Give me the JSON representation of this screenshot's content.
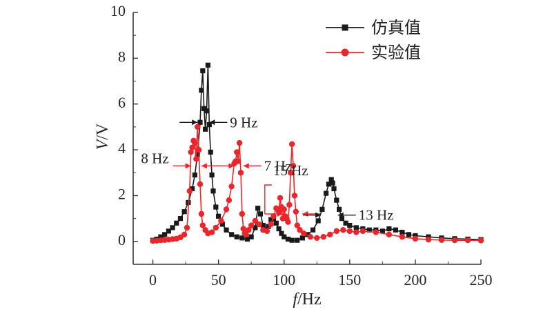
{
  "chart_data": {
    "type": "line",
    "xlabel": "f/Hz",
    "ylabel": "V/V",
    "xlim": [
      -15,
      250
    ],
    "ylim": [
      -1,
      10
    ],
    "xticks": [
      0,
      50,
      100,
      150,
      200,
      250
    ],
    "yticks": [
      0,
      2,
      4,
      6,
      8,
      10
    ],
    "grid": false,
    "legend_position": "top-right",
    "series": [
      {
        "name": "仿真值",
        "color": "#1a1a1a",
        "marker": "square",
        "x": [
          0,
          3,
          6,
          9,
          12,
          15,
          18,
          21,
          24,
          27,
          30,
          32,
          34,
          36,
          37,
          38,
          39,
          40,
          41,
          42,
          43,
          44,
          45,
          46,
          48,
          50,
          53,
          56,
          60,
          64,
          68,
          72,
          75,
          78,
          80,
          82,
          84,
          86,
          88,
          90,
          92,
          94,
          96,
          98,
          100,
          103,
          106,
          110,
          114,
          118,
          122,
          126,
          129,
          132,
          134,
          136,
          137,
          138,
          140,
          142,
          144,
          147,
          150,
          155,
          160,
          165,
          170,
          175,
          180,
          185,
          190,
          195,
          200,
          210,
          220,
          230,
          240,
          250
        ],
        "y": [
          0.05,
          0.1,
          0.2,
          0.3,
          0.45,
          0.6,
          0.8,
          1.0,
          1.3,
          1.7,
          2.3,
          2.9,
          3.8,
          5.2,
          6.6,
          7.45,
          5.8,
          4.9,
          5.7,
          7.7,
          5.1,
          3.9,
          2.9,
          2.2,
          1.5,
          1.1,
          0.75,
          0.5,
          0.3,
          0.2,
          0.15,
          0.1,
          0.2,
          0.6,
          1.45,
          1.2,
          0.7,
          0.5,
          0.65,
          0.95,
          1.0,
          0.8,
          0.55,
          0.35,
          0.2,
          0.1,
          0.05,
          0.05,
          0.15,
          0.3,
          0.5,
          0.9,
          1.4,
          2.1,
          2.5,
          2.7,
          2.55,
          2.3,
          1.8,
          1.4,
          1.0,
          0.8,
          0.7,
          0.6,
          0.55,
          0.5,
          0.5,
          0.45,
          0.55,
          0.5,
          0.4,
          0.3,
          0.25,
          0.2,
          0.15,
          0.12,
          0.1,
          0.08
        ]
      },
      {
        "name": "实验值",
        "color": "#e8262b",
        "marker": "circle",
        "x": [
          0,
          3,
          6,
          9,
          12,
          15,
          18,
          21,
          24,
          26,
          28,
          29,
          30,
          31,
          32,
          33,
          34,
          35,
          36,
          37,
          38,
          40,
          42,
          45,
          48,
          52,
          56,
          58,
          60,
          62,
          63,
          64,
          65,
          66,
          67,
          68,
          69,
          70,
          71,
          73,
          75,
          78,
          81,
          84,
          87,
          90,
          92,
          94,
          96,
          97,
          98,
          99,
          100,
          101,
          102,
          103,
          104,
          105,
          106,
          107,
          108,
          109,
          110,
          112,
          115,
          120,
          125,
          130,
          135,
          140,
          145,
          150,
          155,
          160,
          170,
          180,
          190,
          200,
          210,
          220,
          230,
          240,
          250
        ],
        "y": [
          0.02,
          0.03,
          0.05,
          0.06,
          0.08,
          0.1,
          0.12,
          0.18,
          0.3,
          0.6,
          2.2,
          3.9,
          4.1,
          4.4,
          4.3,
          3.6,
          5.0,
          4.0,
          2.5,
          1.2,
          0.7,
          0.5,
          0.35,
          0.4,
          0.6,
          0.9,
          1.4,
          1.8,
          2.4,
          3.4,
          3.5,
          3.9,
          3.5,
          4.3,
          3.0,
          1.2,
          0.55,
          0.35,
          0.3,
          0.5,
          0.7,
          0.9,
          0.75,
          0.5,
          0.45,
          0.75,
          1.1,
          1.45,
          1.3,
          1.9,
          1.5,
          1.0,
          1.4,
          1.1,
          1.0,
          0.85,
          1.6,
          3.0,
          4.25,
          3.3,
          2.0,
          1.3,
          0.7,
          0.5,
          0.35,
          0.2,
          0.15,
          0.2,
          0.3,
          0.45,
          0.5,
          0.45,
          0.4,
          0.45,
          0.4,
          0.3,
          0.2,
          0.12,
          0.08,
          0.06,
          0.05,
          0.05,
          0.04
        ]
      }
    ],
    "annotations": [
      {
        "text": "9 Hz",
        "color": "#1a1a1a",
        "x1": 34,
        "x2": 43,
        "y": 5.2
      },
      {
        "text": "8 Hz",
        "color": "#e8262b",
        "x1": 29,
        "x2": 37,
        "y": 3.3
      },
      {
        "text": "7 Hz",
        "color": "#e8262b",
        "x1": 62,
        "x2": 69,
        "y": 3.3
      },
      {
        "text": "15 Hz",
        "color": "#e8262b",
        "x1": 99,
        "x2": 114,
        "y": 1.2
      },
      {
        "text": "13 Hz",
        "color": "#1a1a1a",
        "x1": 128,
        "x2": 141,
        "y": 1.15
      }
    ]
  }
}
